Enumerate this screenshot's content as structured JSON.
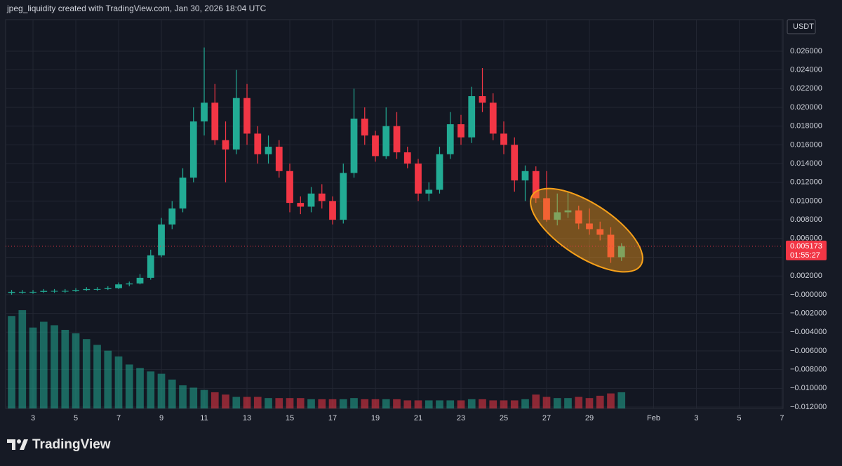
{
  "header": "jpeg_liquidity created with TradingView.com, Jan 30, 2026 18:04 UTC",
  "brand": "TradingView",
  "chart_data": {
    "type": "candlestick",
    "currency": "USDT",
    "x": [
      2,
      2.5,
      3,
      3.5,
      4,
      4.5,
      5,
      5.5,
      6,
      6.5,
      7,
      7.5,
      8,
      8.5,
      9,
      9.5,
      10,
      10.5,
      11,
      11.5,
      12,
      12.5,
      13,
      13.5,
      14,
      14.5,
      15,
      15.5,
      16,
      16.5,
      17,
      17.5,
      18,
      18.5,
      19,
      19.5,
      20,
      20.5,
      21,
      21.5,
      22,
      22.5,
      23,
      23.5,
      24,
      24.5,
      25,
      25.5,
      26,
      26.5,
      27,
      27.5,
      28,
      28.5,
      29,
      29.5,
      30,
      30.5
    ],
    "open": [
      0.0002,
      0.0003,
      0.0003,
      0.0003,
      0.0004,
      0.0004,
      0.0004,
      0.0005,
      0.0006,
      0.0006,
      0.0007,
      0.0011,
      0.0012,
      0.0018,
      0.0042,
      0.0075,
      0.0092,
      0.0125,
      0.0185,
      0.0205,
      0.0165,
      0.0155,
      0.021,
      0.0172,
      0.015,
      0.0158,
      0.0132,
      0.0098,
      0.0094,
      0.0108,
      0.01,
      0.008,
      0.013,
      0.0188,
      0.017,
      0.0148,
      0.018,
      0.0152,
      0.014,
      0.0108,
      0.0112,
      0.015,
      0.0182,
      0.0168,
      0.0212,
      0.0205,
      0.0172,
      0.016,
      0.0122,
      0.0132,
      0.0103,
      0.008,
      0.0088,
      0.009,
      0.0076,
      0.007,
      0.0064,
      0.004
    ],
    "high": [
      0.0005,
      0.0005,
      0.0005,
      0.0006,
      0.0006,
      0.0006,
      0.0007,
      0.0008,
      0.0008,
      0.0009,
      0.0013,
      0.0014,
      0.0022,
      0.0048,
      0.0082,
      0.01,
      0.0135,
      0.02,
      0.0264,
      0.0225,
      0.0185,
      0.024,
      0.0225,
      0.018,
      0.017,
      0.0165,
      0.014,
      0.0105,
      0.0115,
      0.0118,
      0.0105,
      0.014,
      0.022,
      0.02,
      0.0175,
      0.02,
      0.0195,
      0.0158,
      0.0145,
      0.012,
      0.0158,
      0.0195,
      0.0192,
      0.0222,
      0.0242,
      0.0215,
      0.0185,
      0.0168,
      0.0138,
      0.0137,
      0.0132,
      0.0108,
      0.011,
      0.0095,
      0.0092,
      0.0078,
      0.0072,
      0.0055
    ],
    "low": [
      0.0,
      0.0001,
      0.0001,
      0.0002,
      0.0002,
      0.0002,
      0.0003,
      0.0004,
      0.0004,
      0.0005,
      0.0006,
      0.0009,
      0.0011,
      0.0016,
      0.004,
      0.007,
      0.0088,
      0.012,
      0.017,
      0.016,
      0.012,
      0.015,
      0.016,
      0.014,
      0.014,
      0.0125,
      0.0088,
      0.0086,
      0.0088,
      0.0092,
      0.0075,
      0.0076,
      0.0125,
      0.016,
      0.0142,
      0.0145,
      0.0145,
      0.0135,
      0.01,
      0.01,
      0.0108,
      0.0145,
      0.016,
      0.0162,
      0.0195,
      0.0165,
      0.015,
      0.011,
      0.01,
      0.0098,
      0.0078,
      0.0074,
      0.0082,
      0.007,
      0.0064,
      0.0058,
      0.0034,
      0.0036
    ],
    "close": [
      0.0003,
      0.0003,
      0.0003,
      0.0004,
      0.0004,
      0.0004,
      0.0005,
      0.0006,
      0.0006,
      0.0007,
      0.0011,
      0.0012,
      0.0018,
      0.0042,
      0.0075,
      0.0092,
      0.0125,
      0.0185,
      0.0205,
      0.0165,
      0.0155,
      0.021,
      0.0172,
      0.015,
      0.0158,
      0.0132,
      0.0098,
      0.0094,
      0.0108,
      0.01,
      0.008,
      0.013,
      0.0188,
      0.017,
      0.0148,
      0.018,
      0.0152,
      0.014,
      0.0108,
      0.0112,
      0.015,
      0.0182,
      0.0168,
      0.0212,
      0.0205,
      0.0172,
      0.016,
      0.0122,
      0.0132,
      0.0103,
      0.008,
      0.0088,
      0.009,
      0.0076,
      0.007,
      0.0064,
      0.004,
      0.0052
    ],
    "volume": [
      80,
      85,
      70,
      75,
      72,
      68,
      65,
      60,
      55,
      50,
      45,
      38,
      35,
      32,
      30,
      25,
      20,
      18,
      16,
      14,
      12,
      10,
      10,
      10,
      9,
      9,
      9,
      9,
      8,
      8,
      8,
      8,
      9,
      8,
      8,
      8,
      8,
      7,
      7,
      7,
      7,
      7,
      7,
      8,
      8,
      7,
      7,
      7,
      8,
      12,
      10,
      9,
      9,
      10,
      9,
      11,
      13,
      14
    ],
    "up_color": "#22ab94",
    "down_color": "#f23645",
    "xlim": [
      1.72,
      38.05
    ],
    "xticks": [
      3,
      5,
      7,
      9,
      11,
      13,
      15,
      17,
      19,
      21,
      23,
      25,
      27,
      29,
      {
        "value": 32,
        "label": "Feb"
      },
      {
        "value": 34,
        "label": "3"
      },
      {
        "value": 36,
        "label": "5"
      },
      {
        "value": 38,
        "label": "7"
      }
    ],
    "ylim": [
      -0.01215,
      0.02937
    ],
    "yticks": [
      {
        "value": 0.026,
        "label": "0.026000"
      },
      {
        "value": 0.024,
        "label": "0.024000"
      },
      {
        "value": 0.022,
        "label": "0.022000"
      },
      {
        "value": 0.02,
        "label": "0.020000"
      },
      {
        "value": 0.018,
        "label": "0.018000"
      },
      {
        "value": 0.016,
        "label": "0.016000"
      },
      {
        "value": 0.014,
        "label": "0.014000"
      },
      {
        "value": 0.012,
        "label": "0.012000"
      },
      {
        "value": 0.01,
        "label": "0.010000"
      },
      {
        "value": 0.008,
        "label": "0.008000"
      },
      {
        "value": 0.006,
        "label": "0.006000"
      },
      {
        "value": 0.004,
        "label": "0.004000"
      },
      {
        "value": 0.002,
        "label": "0.002000"
      },
      {
        "value": 0,
        "label": "−0.000000"
      },
      {
        "value": -0.002,
        "label": "−0.002000"
      },
      {
        "value": -0.004,
        "label": "−0.004000"
      },
      {
        "value": -0.006,
        "label": "−0.006000"
      },
      {
        "value": -0.008,
        "label": "−0.008000"
      },
      {
        "value": -0.01,
        "label": "−0.010000"
      },
      {
        "value": -0.012,
        "label": "−0.012000"
      }
    ],
    "grid": true,
    "last_price": {
      "value": 0.005173,
      "label": "0.005173"
    },
    "countdown": "01:55:27"
  }
}
